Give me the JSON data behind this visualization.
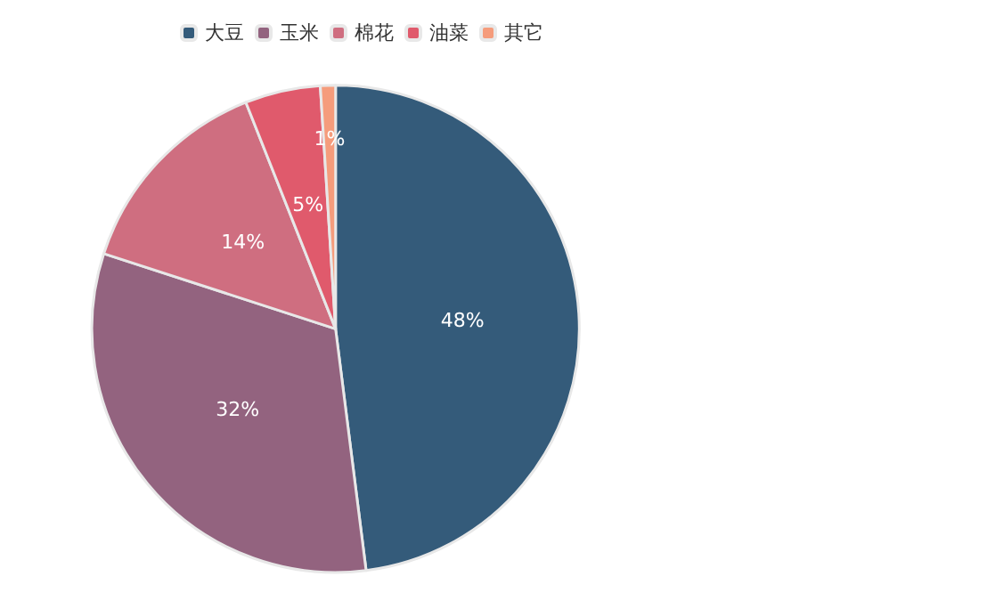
{
  "chart_data": {
    "type": "pie",
    "categories": [
      "大豆",
      "玉米",
      "棉花",
      "油菜",
      "其它"
    ],
    "values": [
      48,
      32,
      14,
      5,
      1
    ],
    "colors": [
      "#345b7a",
      "#93637f",
      "#cf6e80",
      "#e05a6c",
      "#f59c7c"
    ],
    "value_labels": [
      "48%",
      "32%",
      "14%",
      "5%",
      "1%"
    ],
    "legend": "top"
  }
}
